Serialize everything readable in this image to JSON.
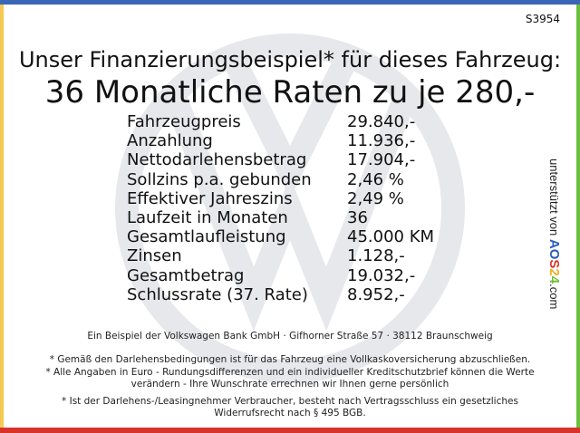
{
  "ad_code": "S3954",
  "headline": "Unser Finanzierungsbeispiel* für dieses Fahrzeug:",
  "subheadline": "36 Monatliche Raten zu je 280,-",
  "rows": [
    {
      "label": "Fahrzeugpreis",
      "value": "29.840,-"
    },
    {
      "label": "Anzahlung",
      "value": "11.936,-"
    },
    {
      "label": "Nettodarlehensbetrag",
      "value": "17.904,-"
    },
    {
      "label": "Sollzins p.a. gebunden",
      "value": "2,46 %"
    },
    {
      "label": "Effektiver Jahreszins",
      "value": "2,49 %"
    },
    {
      "label": "Laufzeit in Monaten",
      "value": "36"
    },
    {
      "label": "Gesamtlaufleistung",
      "value": "45.000 KM"
    },
    {
      "label": "Zinsen",
      "value": "1.128,-"
    },
    {
      "label": "Gesamtbetrag",
      "value": "19.032,-"
    },
    {
      "label": "Schlussrate (37. Rate)",
      "value": "8.952,-"
    }
  ],
  "footer": {
    "bank": "Ein Beispiel der Volkswagen Bank GmbH · Gifhorner Straße 57 · 38112 Braunschweig",
    "note1": "* Gemäß den Darlehensbedingungen ist für das Fahrzeug eine Vollkaskoversicherung abzuschließen.",
    "note2": "* Alle Angaben in Euro - Rundungsdifferenzen und ein individueller Kreditschutzbrief können die Werte verändern - Ihre Wunschrate errechnen wir Ihnen gerne persönlich",
    "note3": "* Ist der Darlehens-/Leasingnehmer Verbraucher, besteht nach Vertragsschluss ein gesetzliches Widerrufsrecht nach § 495 BGB."
  },
  "sponsor": {
    "prefix": "unterstützt von ",
    "letters": [
      "A",
      "O",
      "S",
      "2",
      "4"
    ],
    "suffix": ".com"
  },
  "colors": {
    "top": "#3b66b5",
    "left": "#f5c850",
    "right": "#6bbf3e",
    "bottom": "#d8332b",
    "aos": [
      "#2b5fb8",
      "#2b5fb8",
      "#d8332b",
      "#f0b020",
      "#6bbf3e"
    ]
  }
}
